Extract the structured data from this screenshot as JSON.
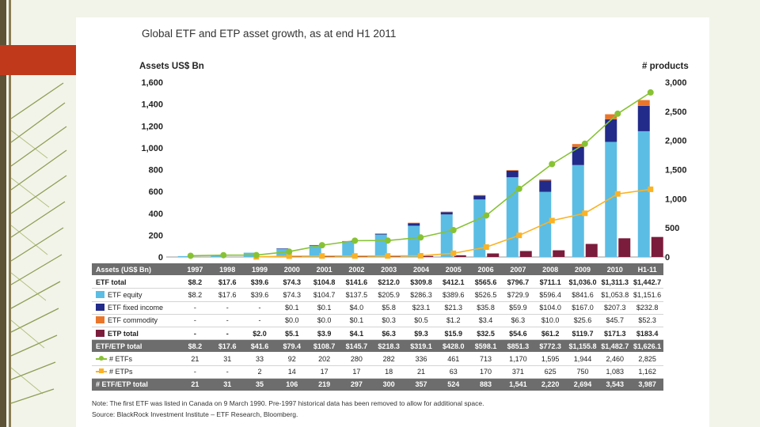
{
  "colors": {
    "etf_equity": "#5bbde4",
    "etf_fixed_income": "#222b8a",
    "etf_commodity": "#e9762b",
    "etp_total": "#7b1c3c",
    "etfs_line": "#87c234",
    "etps_line": "#fbb224",
    "accent": "#c0391b"
  },
  "chart_data": {
    "type": "bar",
    "title": "Global ETF and ETP asset growth, as at end H1 2011",
    "ylabel": "Assets US$ Bn",
    "y2label": "# products",
    "ylim": [
      0,
      1600
    ],
    "y2lim": [
      0,
      3000
    ],
    "yticks": [
      "0",
      "200",
      "400",
      "600",
      "800",
      "1,000",
      "1,200",
      "1,400",
      "1,600"
    ],
    "y2ticks": [
      "0",
      "500",
      "1,000",
      "1,500",
      "2,000",
      "2,500",
      "3,000"
    ],
    "categories": [
      "1997",
      "1998",
      "1999",
      "2000",
      "2001",
      "2002",
      "2003",
      "2004",
      "2005",
      "2006",
      "2007",
      "2008",
      "2009",
      "2010",
      "H1-11"
    ],
    "table_header": "Assets (US$ Bn)",
    "rows": [
      {
        "key": "etf_total",
        "label": "ETF total",
        "style": "bold",
        "values": [
          "$8.2",
          "$17.6",
          "$39.6",
          "$74.3",
          "$104.8",
          "$141.6",
          "$212.0",
          "$309.8",
          "$412.1",
          "$565.6",
          "$796.7",
          "$711.1",
          "$1,036.0",
          "$1,311.3",
          "$1,442.7"
        ]
      },
      {
        "key": "etf_equity",
        "label": "ETF equity",
        "style": "swatch",
        "values": [
          "$8.2",
          "$17.6",
          "$39.6",
          "$74.3",
          "$104.7",
          "$137.5",
          "$205.9",
          "$286.3",
          "$389.6",
          "$526.5",
          "$729.9",
          "$596.4",
          "$841.6",
          "$1,053.8",
          "$1,151.6"
        ]
      },
      {
        "key": "etf_fixed_income",
        "label": "ETF fixed income",
        "style": "swatch",
        "values": [
          "-",
          "-",
          "-",
          "$0.1",
          "$0.1",
          "$4.0",
          "$5.8",
          "$23.1",
          "$21.3",
          "$35.8",
          "$59.9",
          "$104.0",
          "$167.0",
          "$207.3",
          "$232.8"
        ]
      },
      {
        "key": "etf_commodity",
        "label": "ETF commodity",
        "style": "swatch",
        "values": [
          "-",
          "-",
          "-",
          "$0.0",
          "$0.0",
          "$0.1",
          "$0.3",
          "$0.5",
          "$1.2",
          "$3.4",
          "$6.3",
          "$10.0",
          "$25.6",
          "$45.7",
          "$52.3"
        ]
      },
      {
        "key": "etp_total",
        "label": "ETP total",
        "style": "swatch-bold",
        "values": [
          "-",
          "-",
          "$2.0",
          "$5.1",
          "$3.9",
          "$4.1",
          "$6.3",
          "$9.3",
          "$15.9",
          "$32.5",
          "$54.6",
          "$61.2",
          "$119.7",
          "$171.3",
          "$183.4"
        ]
      },
      {
        "key": "etf_etp_total",
        "label": "ETF/ETP total",
        "style": "dark",
        "values": [
          "$8.2",
          "$17.6",
          "$41.6",
          "$79.4",
          "$108.7",
          "$145.7",
          "$218.3",
          "$319.1",
          "$428.0",
          "$598.1",
          "$851.3",
          "$772.3",
          "$1,155.8",
          "$1,482.7",
          "$1,626.1"
        ]
      },
      {
        "key": "etfs",
        "label": "# ETFs",
        "style": "line-circle",
        "values": [
          "21",
          "31",
          "33",
          "92",
          "202",
          "280",
          "282",
          "336",
          "461",
          "713",
          "1,170",
          "1,595",
          "1,944",
          "2,460",
          "2,825"
        ]
      },
      {
        "key": "etps",
        "label": "# ETPs",
        "style": "line-square",
        "values": [
          "-",
          "-",
          "2",
          "14",
          "17",
          "17",
          "18",
          "21",
          "63",
          "170",
          "371",
          "625",
          "750",
          "1,083",
          "1,162"
        ]
      },
      {
        "key": "etf_etp_count",
        "label": "# ETF/ETP total",
        "style": "dark",
        "values": [
          "21",
          "31",
          "35",
          "106",
          "219",
          "297",
          "300",
          "357",
          "524",
          "883",
          "1,541",
          "2,220",
          "2,694",
          "3,543",
          "3,987"
        ]
      }
    ],
    "stacks": {
      "etf_equity": [
        8.2,
        17.6,
        39.6,
        74.3,
        104.7,
        137.5,
        205.9,
        286.3,
        389.6,
        526.5,
        729.9,
        596.4,
        841.6,
        1053.8,
        1151.6
      ],
      "etf_fixed_income": [
        0,
        0,
        0,
        0.1,
        0.1,
        4.0,
        5.8,
        23.1,
        21.3,
        35.8,
        59.9,
        104.0,
        167.0,
        207.3,
        232.8
      ],
      "etf_commodity": [
        0,
        0,
        0,
        0,
        0,
        0.1,
        0.3,
        0.5,
        1.2,
        3.4,
        6.3,
        10.0,
        25.6,
        45.7,
        52.3
      ],
      "etp_total": [
        0,
        0,
        2.0,
        5.1,
        3.9,
        4.1,
        6.3,
        9.3,
        15.9,
        32.5,
        54.6,
        61.2,
        119.7,
        171.3,
        183.4
      ]
    },
    "lines": {
      "etfs": [
        21,
        31,
        33,
        92,
        202,
        280,
        282,
        336,
        461,
        713,
        1170,
        1595,
        1944,
        2460,
        2825
      ],
      "etps": [
        null,
        null,
        2,
        14,
        17,
        17,
        18,
        21,
        63,
        170,
        371,
        625,
        750,
        1083,
        1162
      ]
    },
    "grid": false,
    "legend": "table-left"
  },
  "note": "Note: The first ETF was listed in Canada on 9 March 1990. Pre-1997 historical data has been removed to allow for additional space.",
  "source": "Source: BlackRock Investment Institute – ETF Research, Bloomberg."
}
